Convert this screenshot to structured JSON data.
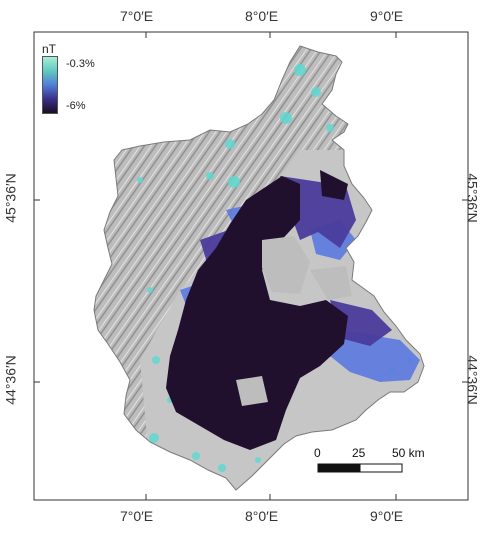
{
  "map": {
    "longitude_ticks_top": [
      "7°0′E",
      "8°0′E",
      "9°0′E"
    ],
    "longitude_ticks_bottom": [
      "7°0′E",
      "8°0′E",
      "9°0′E"
    ],
    "latitude_ticks_left": [
      "45°36′N",
      "44°36′N"
    ],
    "latitude_ticks_right": [
      "45°36′N",
      "44°36′N"
    ]
  },
  "legend": {
    "title": "nT",
    "top_label": "-0.3%",
    "bottom_label": "-6%",
    "colors": [
      "#a8ecd6",
      "#60c9c0",
      "#4f7fd6",
      "#3b2f8a",
      "#1a0d26"
    ]
  },
  "scale_bar": {
    "labels": [
      "0",
      "25",
      "50 km"
    ]
  },
  "colors": {
    "terrain": "#b9b9b9",
    "background": "#d0d0d0",
    "deep": "#20102e",
    "mid": "#4a3b9b",
    "light": "#5b78e0",
    "cyan": "#59d6d0"
  }
}
